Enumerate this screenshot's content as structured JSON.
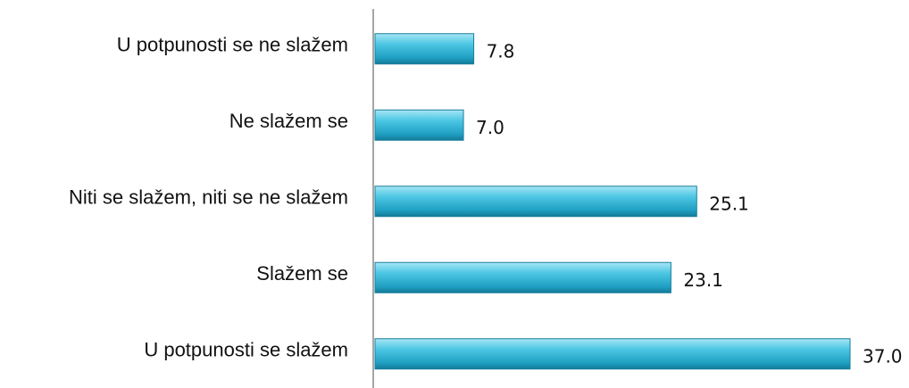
{
  "chart_data": {
    "type": "bar",
    "orientation": "horizontal",
    "categories": [
      "U potpunosti se ne slažem",
      "Ne slažem se",
      "Niti se slažem, niti se ne slažem",
      "Slažem se",
      "U potpunosti se slažem"
    ],
    "values": [
      7.8,
      7.0,
      25.1,
      23.1,
      37.0
    ],
    "value_labels": [
      "7.8",
      "7.0",
      "25.1",
      "23.1",
      "37.0"
    ],
    "color": "#31b6d6"
  }
}
